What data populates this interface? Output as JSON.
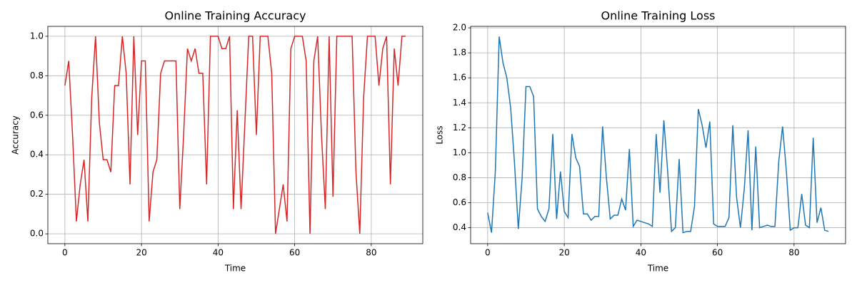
{
  "chart_data": [
    {
      "type": "line",
      "title": "Online Training Accuracy",
      "xlabel": "Time",
      "ylabel": "Accuracy",
      "x": [
        0,
        1,
        2,
        3,
        4,
        5,
        6,
        7,
        8,
        9,
        10,
        11,
        12,
        13,
        14,
        15,
        16,
        17,
        18,
        19,
        20,
        21,
        22,
        23,
        24,
        25,
        26,
        27,
        28,
        29,
        30,
        31,
        32,
        33,
        34,
        35,
        36,
        37,
        38,
        39,
        40,
        41,
        42,
        43,
        44,
        45,
        46,
        47,
        48,
        49,
        50,
        51,
        52,
        53,
        54,
        55,
        56,
        57,
        58,
        59,
        60,
        61,
        62,
        63,
        64,
        65,
        66,
        67,
        68,
        69,
        70,
        71,
        72,
        73,
        74,
        75,
        76,
        77,
        78,
        79,
        80,
        81,
        82,
        83,
        84,
        85,
        86,
        87,
        88,
        89
      ],
      "series": [
        {
          "color": "#d62728",
          "values": [
            0.75,
            0.875,
            0.5,
            0.0625,
            0.25,
            0.375,
            0.0625,
            0.6875,
            1.0,
            0.5625,
            0.375,
            0.375,
            0.3125,
            0.75,
            0.75,
            1.0,
            0.8125,
            0.25,
            1.0,
            0.5,
            0.875,
            0.875,
            0.0625,
            0.3125,
            0.375,
            0.8125,
            0.875,
            0.875,
            0.875,
            0.875,
            0.125,
            0.5,
            0.9375,
            0.875,
            0.9375,
            0.8125,
            0.8125,
            0.25,
            1.0,
            1.0,
            1.0,
            0.9375,
            0.9375,
            1.0,
            0.125,
            0.625,
            0.125,
            0.5625,
            1.0,
            1.0,
            0.5,
            1.0,
            1.0,
            1.0,
            0.8125,
            0.0,
            0.125,
            0.25,
            0.0625,
            0.9375,
            1.0,
            1.0,
            1.0,
            0.875,
            0.0,
            0.875,
            1.0,
            0.5,
            0.125,
            1.0,
            0.1875,
            1.0,
            1.0,
            1.0,
            1.0,
            1.0,
            0.3125,
            0.0,
            0.6875,
            1.0,
            1.0,
            1.0,
            0.75,
            0.9375,
            1.0,
            0.25,
            0.9375,
            0.75,
            1.0,
            1.0
          ]
        }
      ],
      "xlim": [
        -4.45,
        93.45
      ],
      "xticks": [
        0,
        20,
        40,
        60,
        80
      ],
      "ylim": [
        -0.05,
        1.05
      ],
      "yticks": [
        {
          "value": 0,
          "label": "0.0"
        },
        0.2,
        0.4,
        0.6,
        0.8,
        {
          "value": 1,
          "label": "1.0"
        }
      ],
      "grid": true
    },
    {
      "type": "line",
      "title": "Online Training Loss",
      "xlabel": "Time",
      "ylabel": "Loss",
      "x": [
        0,
        1,
        2,
        3,
        4,
        5,
        6,
        7,
        8,
        9,
        10,
        11,
        12,
        13,
        14,
        15,
        16,
        17,
        18,
        19,
        20,
        21,
        22,
        23,
        24,
        25,
        26,
        27,
        28,
        29,
        30,
        31,
        32,
        33,
        34,
        35,
        36,
        37,
        38,
        39,
        40,
        41,
        42,
        43,
        44,
        45,
        46,
        47,
        48,
        49,
        50,
        51,
        52,
        53,
        54,
        55,
        56,
        57,
        58,
        59,
        60,
        61,
        62,
        63,
        64,
        65,
        66,
        67,
        68,
        69,
        70,
        71,
        72,
        73,
        74,
        75,
        76,
        77,
        78,
        79,
        80,
        81,
        82,
        83,
        84,
        85,
        86,
        87,
        88,
        89
      ],
      "series": [
        {
          "color": "#1f77b4",
          "values": [
            0.52,
            0.36,
            0.85,
            1.93,
            1.72,
            1.6,
            1.36,
            0.92,
            0.39,
            0.8,
            1.53,
            1.53,
            1.45,
            0.55,
            0.49,
            0.45,
            0.55,
            1.15,
            0.47,
            0.85,
            0.53,
            0.48,
            1.15,
            0.96,
            0.89,
            0.51,
            0.51,
            0.46,
            0.49,
            0.49,
            1.21,
            0.8,
            0.47,
            0.5,
            0.5,
            0.63,
            0.54,
            1.03,
            0.41,
            0.46,
            0.45,
            0.44,
            0.43,
            0.41,
            1.15,
            0.68,
            1.26,
            0.85,
            0.37,
            0.4,
            0.95,
            0.36,
            0.37,
            0.37,
            0.57,
            1.35,
            1.22,
            1.04,
            1.25,
            0.43,
            0.41,
            0.41,
            0.41,
            0.48,
            1.22,
            0.64,
            0.4,
            0.71,
            1.18,
            0.38,
            1.05,
            0.4,
            0.41,
            0.42,
            0.41,
            0.41,
            0.93,
            1.21,
            0.85,
            0.38,
            0.4,
            0.4,
            0.67,
            0.42,
            0.4,
            1.12,
            0.44,
            0.56,
            0.38,
            0.37
          ]
        }
      ],
      "xlim": [
        -4.45,
        93.45
      ],
      "xticks": [
        0,
        20,
        40,
        60,
        80
      ],
      "ylim": [
        0.272,
        2.012
      ],
      "yticks": [
        0.4,
        0.6,
        0.8,
        {
          "value": 1,
          "label": "1.0"
        },
        1.2,
        1.4,
        1.6,
        1.8,
        {
          "value": 2,
          "label": "2.0"
        }
      ],
      "grid": true
    }
  ]
}
